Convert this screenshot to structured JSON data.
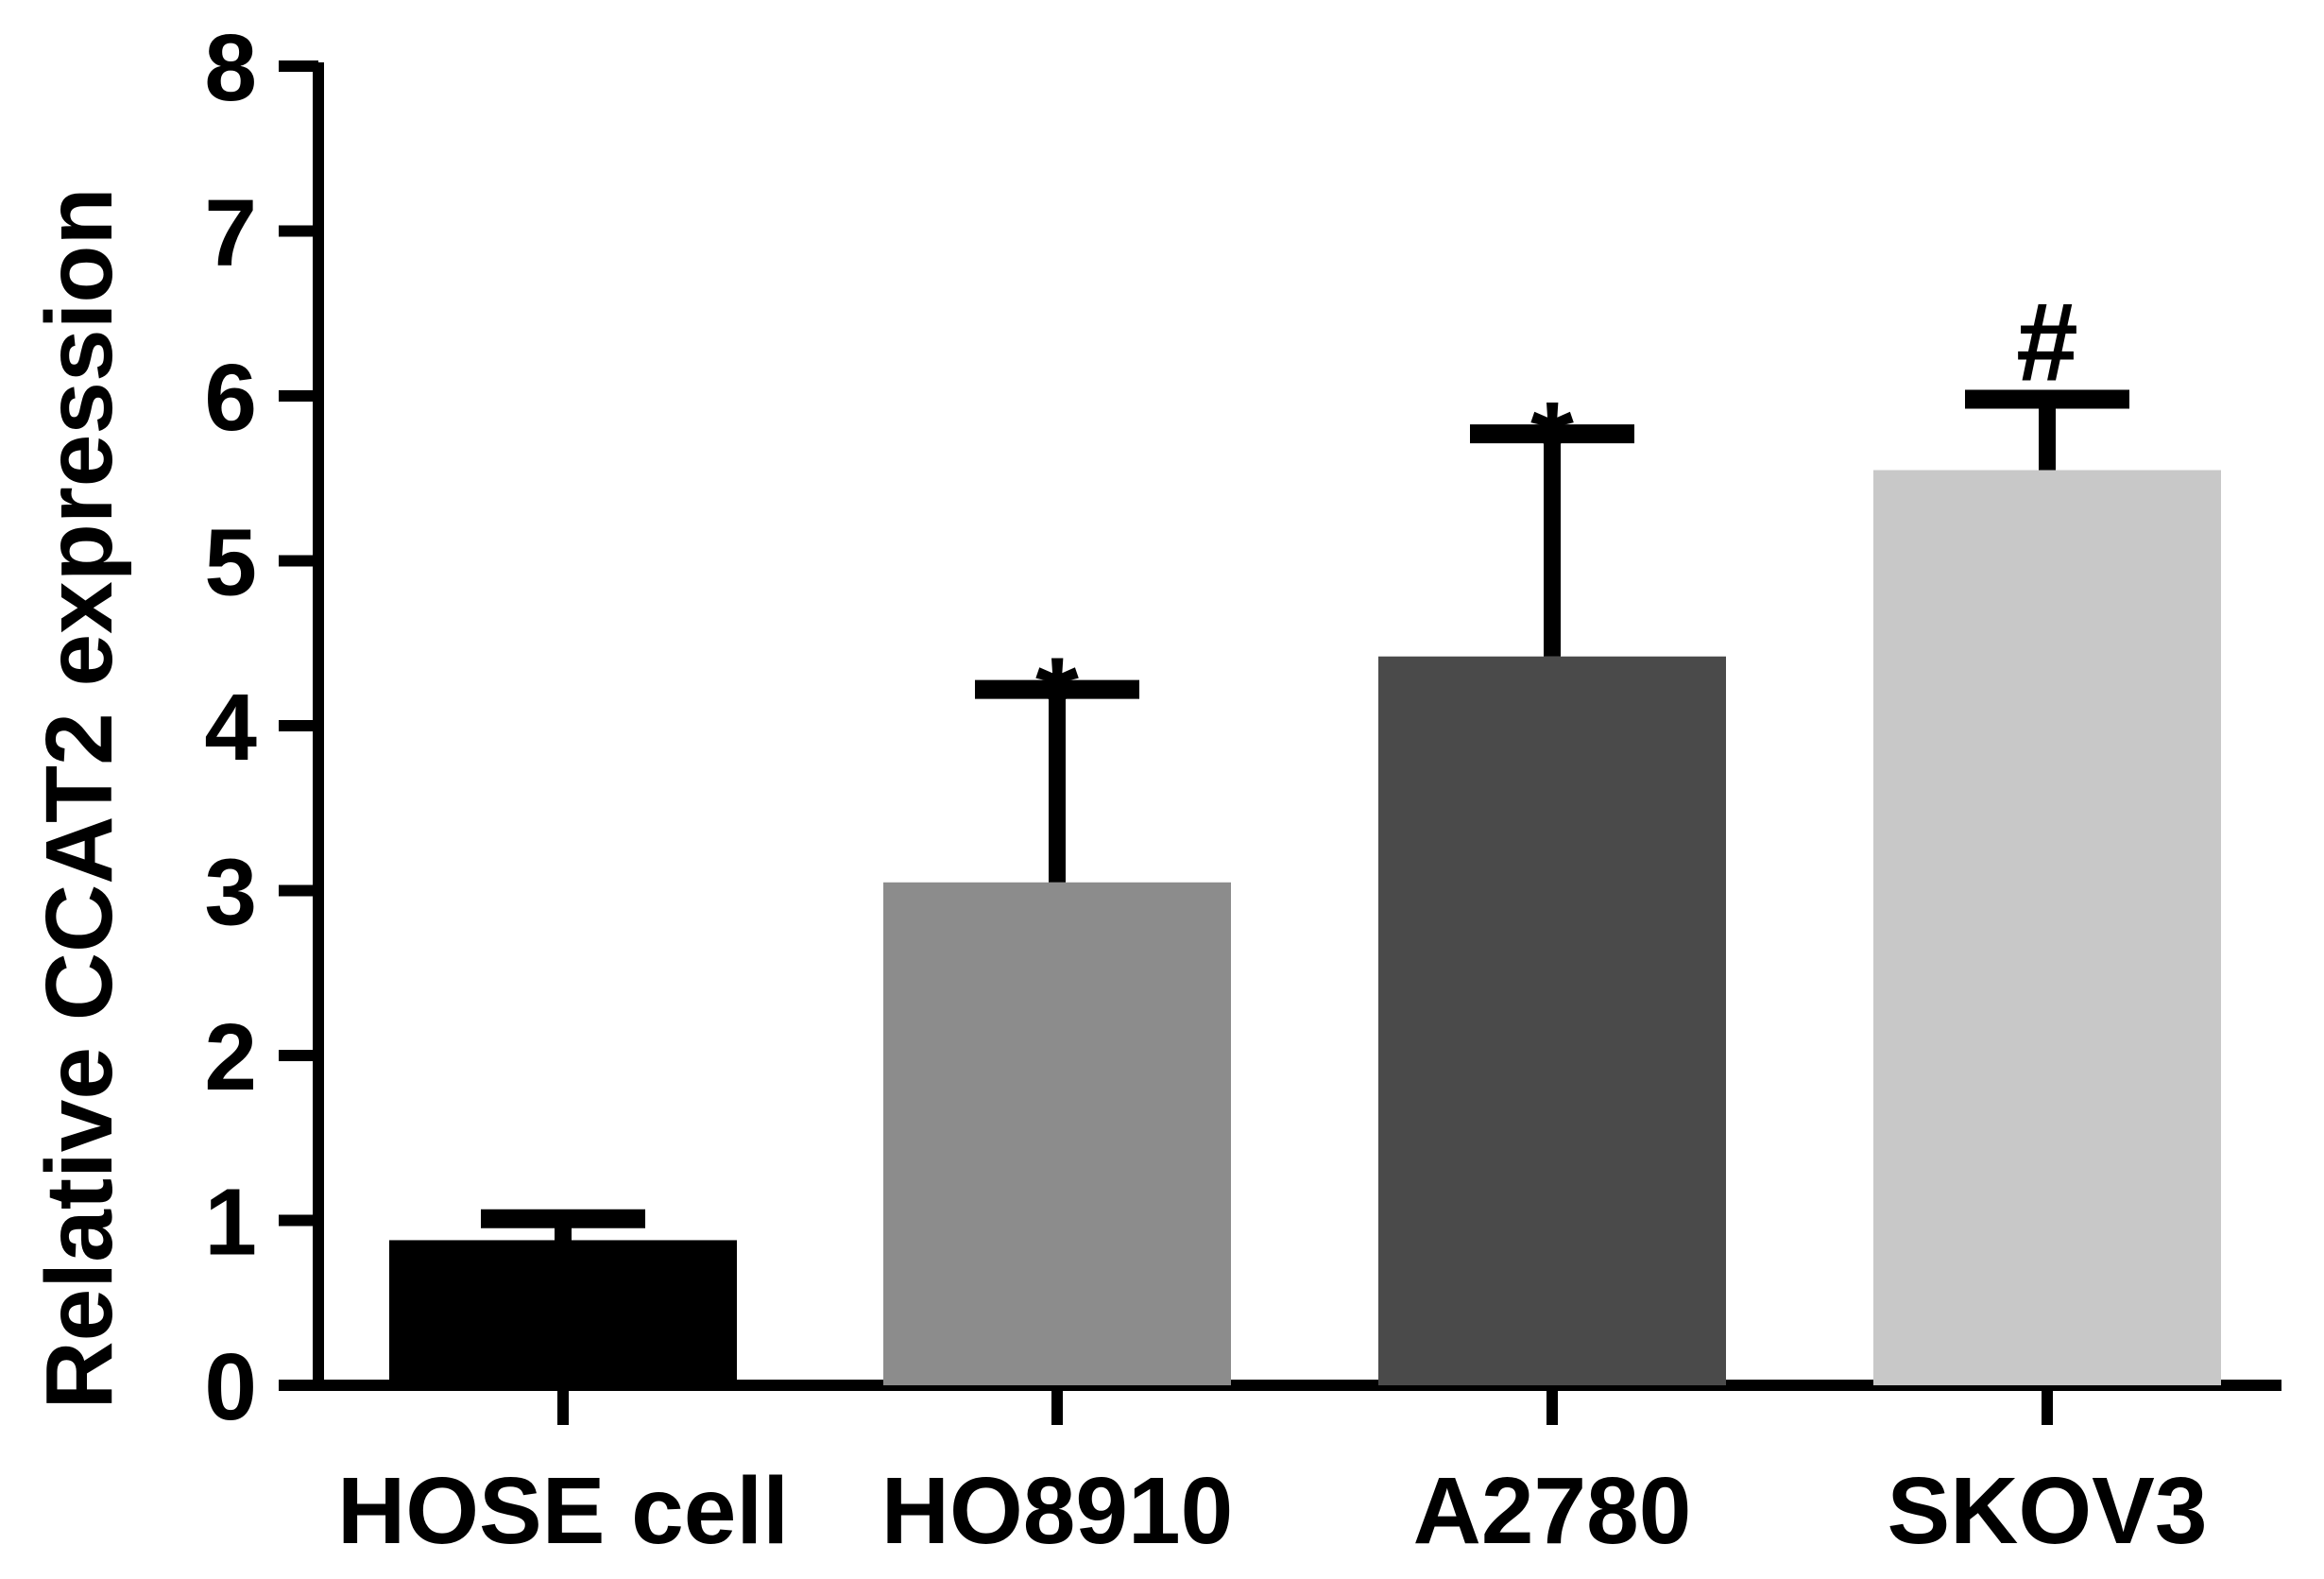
{
  "chart_data": {
    "type": "bar",
    "title": "",
    "xlabel": "",
    "ylabel": "Relative CCAT2  expression",
    "ylim": [
      0,
      8
    ],
    "yticks": [
      0,
      1,
      2,
      3,
      4,
      5,
      6,
      7,
      8
    ],
    "ytick_labels": [
      "0",
      "1",
      "2",
      "3",
      "4",
      "5",
      "6",
      "7",
      "8"
    ],
    "categories": [
      "HOSE cell",
      "HO8910",
      "A2780",
      "SKOV3"
    ],
    "values": [
      0.88,
      3.05,
      4.42,
      5.55
    ],
    "error_upper": [
      0.13,
      1.17,
      1.35,
      0.43
    ],
    "significance": [
      "",
      "*",
      "*",
      "#"
    ],
    "bar_colors": [
      "#000000",
      "#8c8c8c",
      "#4a4a4a",
      "#c8c8c8"
    ],
    "grid": false,
    "legend": "none"
  }
}
